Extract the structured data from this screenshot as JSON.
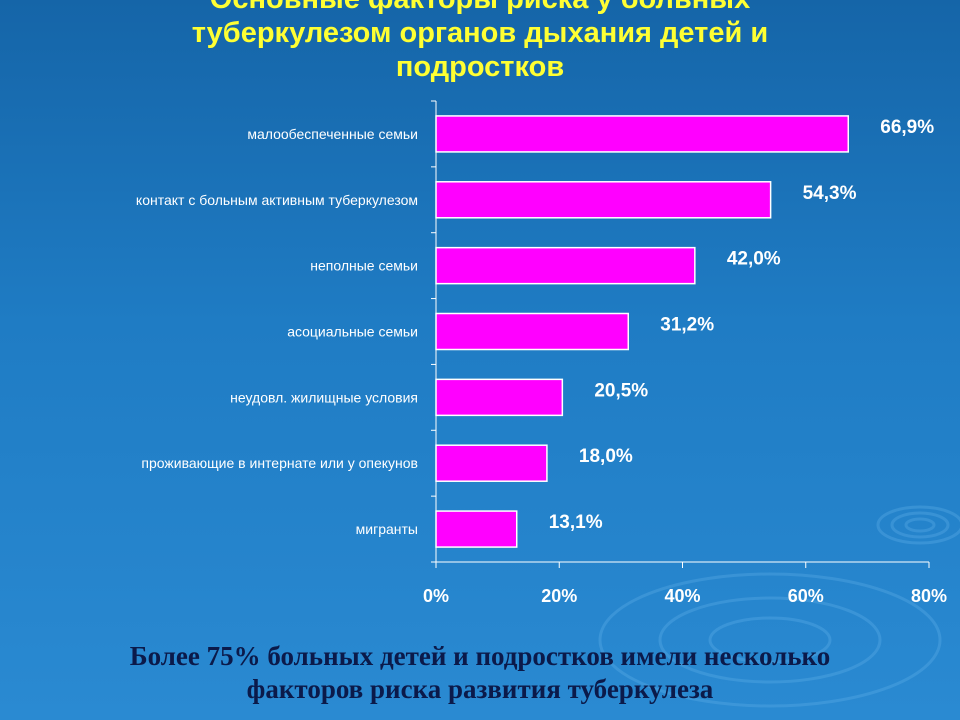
{
  "title_lines": [
    "Основные факторы риска у больных",
    "туберкулезом органов дыхания детей и",
    "подростков"
  ],
  "footer_lines": [
    "Более 75% больных детей и подростков имели несколько",
    "факторов риска развития туберкулеза"
  ],
  "colors": {
    "bar": "#ff00ff",
    "bar_border": "#ffffff",
    "title": "#ffff33",
    "footer": "#0b1a4a",
    "background": "#1f7cc4"
  },
  "chart_data": {
    "type": "bar",
    "orientation": "horizontal",
    "categories": [
      "малообеспеченные семьи",
      "контакт с больным активным туберкулезом",
      "неполные семьи",
      "асоциальные семьи",
      "неудовл. жилищные условия",
      "проживающие в интернате или у опекунов",
      "мигранты"
    ],
    "values": [
      66.9,
      54.3,
      42.0,
      31.2,
      20.5,
      18.0,
      13.1
    ],
    "value_labels": [
      "66,9%",
      "54,3%",
      "42,0%",
      "31,2%",
      "20,5%",
      "18,0%",
      "13,1%"
    ],
    "xlim": [
      0,
      80
    ],
    "x_ticks": [
      0,
      20,
      40,
      60,
      80
    ],
    "x_tick_labels": [
      "0%",
      "20%",
      "40%",
      "60%",
      "80%"
    ],
    "grid": false,
    "legend": "none"
  }
}
